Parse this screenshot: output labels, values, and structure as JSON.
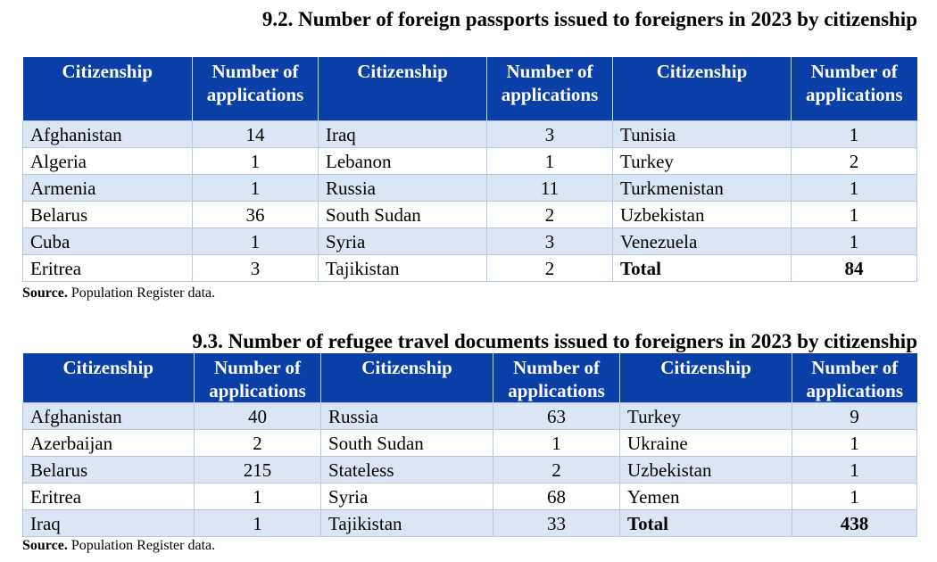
{
  "table1": {
    "title": "9.2. Number of foreign passports issued to foreigners in 2023 by citizenship",
    "headers": [
      "Citizenship",
      "Number of applications",
      "Citizenship",
      "Number of applications",
      "Citizenship",
      "Number of applications"
    ],
    "rows": [
      [
        "Afghanistan",
        "14",
        "Iraq",
        "3",
        "Tunisia",
        "1"
      ],
      [
        "Algeria",
        "1",
        "Lebanon",
        "1",
        "Turkey",
        "2"
      ],
      [
        "Armenia",
        "1",
        "Russia",
        "11",
        "Turkmenistan",
        "1"
      ],
      [
        "Belarus",
        "36",
        "South Sudan",
        "2",
        "Uzbekistan",
        "1"
      ],
      [
        "Cuba",
        "1",
        "Syria",
        "3",
        "Venezuela",
        "1"
      ],
      [
        "Eritrea",
        "3",
        "Tajikistan",
        "2",
        "Total",
        "84"
      ]
    ],
    "source_label": "Source.",
    "source_text": " Population Register data."
  },
  "table2": {
    "title": "9.3. Number of refugee travel documents issued to foreigners in 2023 by citizenship",
    "headers": [
      "Citizenship",
      "Number of applications",
      "Citizenship",
      "Number of applications",
      "Citizenship",
      "Number of applications"
    ],
    "rows": [
      [
        "Afghanistan",
        "40",
        "Russia",
        "63",
        "Turkey",
        "9"
      ],
      [
        "Azerbaijan",
        "2",
        "South Sudan",
        "1",
        "Ukraine",
        "1"
      ],
      [
        "Belarus",
        "215",
        "Stateless",
        "2",
        "Uzbekistan",
        "1"
      ],
      [
        "Eritrea",
        "1",
        "Syria",
        "68",
        "Yemen",
        "1"
      ],
      [
        "Iraq",
        "1",
        "Tajikistan",
        "33",
        "Total",
        "438"
      ]
    ],
    "source_label": "Source.",
    "source_text": " Population Register data."
  },
  "colors": {
    "header_bg": "#0a3fa8",
    "band_bg": "#dbe6f4"
  }
}
